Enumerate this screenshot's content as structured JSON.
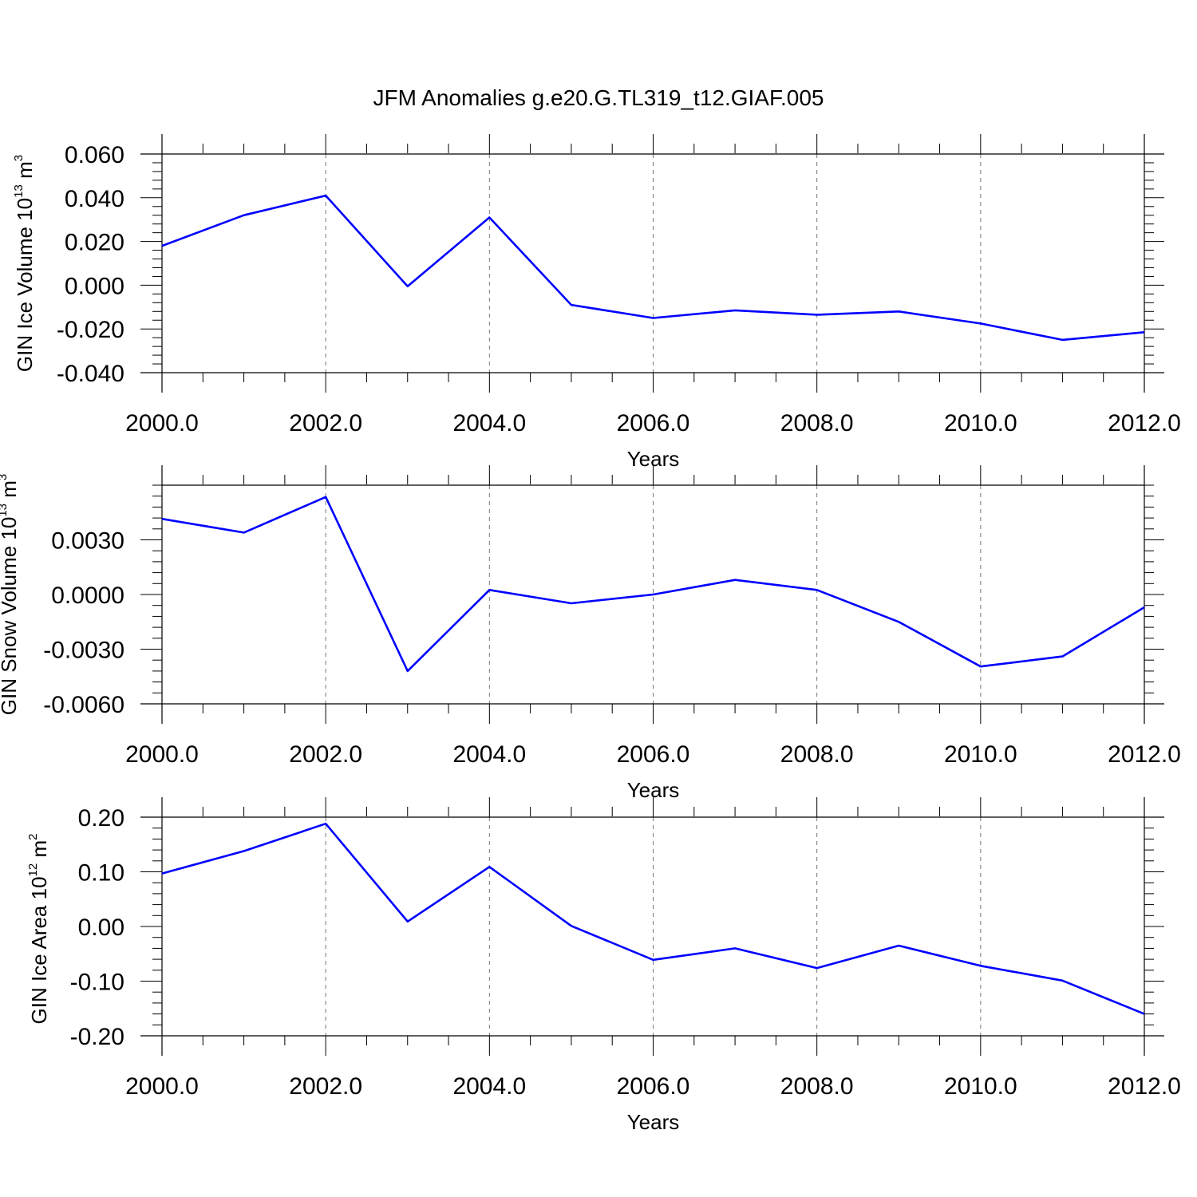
{
  "title": "JFM Anomalies g.e20.G.TL319_t12.GIAF.005",
  "colors": {
    "series": "#0000ff",
    "grid": "#777777",
    "axis": "#000000"
  },
  "chart_data": [
    {
      "type": "line",
      "xlabel": "Years",
      "ylabel": {
        "text": "GIN Ice Volume 10",
        "exp": "13",
        "unit_text": " m",
        "unit_exp": "3"
      },
      "xlim": [
        2000,
        2012
      ],
      "ylim": [
        -0.04,
        0.06
      ],
      "x_ticks": [
        2000,
        2002,
        2004,
        2006,
        2008,
        2010,
        2012
      ],
      "x_tick_labels": [
        "2000.0",
        "2002.0",
        "2004.0",
        "2006.0",
        "2008.0",
        "2010.0",
        "2012.0"
      ],
      "y_ticks": [
        -0.04,
        -0.02,
        0.0,
        0.02,
        0.04,
        0.06
      ],
      "y_tick_labels": [
        "-0.040",
        "-0.020",
        "0.000",
        "0.020",
        "0.040",
        "0.060"
      ],
      "grid": "vertical dashed",
      "series": [
        {
          "x": [
            2000,
            2001,
            2002,
            2003,
            2004,
            2005,
            2006,
            2007,
            2008,
            2009,
            2010,
            2011,
            2012
          ],
          "values": [
            0.018,
            0.032,
            0.041,
            -0.0005,
            0.031,
            -0.009,
            -0.015,
            -0.0115,
            -0.0135,
            -0.012,
            -0.0175,
            -0.025,
            -0.0215
          ]
        }
      ]
    },
    {
      "type": "line",
      "xlabel": "Years",
      "ylabel": {
        "text": "GIN Snow Volume 10",
        "exp": "13",
        "unit_text": " m",
        "unit_exp": "3"
      },
      "xlim": [
        2000,
        2012
      ],
      "ylim": [
        -0.006,
        0.006
      ],
      "x_ticks": [
        2000,
        2002,
        2004,
        2006,
        2008,
        2010,
        2012
      ],
      "x_tick_labels": [
        "2000.0",
        "2002.0",
        "2004.0",
        "2006.0",
        "2008.0",
        "2010.0",
        "2012.0"
      ],
      "y_ticks": [
        -0.006,
        -0.003,
        0.0,
        0.003
      ],
      "y_tick_labels": [
        "-0.0060",
        "-0.0030",
        "0.0000",
        "0.0030"
      ],
      "grid": "vertical dashed",
      "series": [
        {
          "x": [
            2000,
            2001,
            2002,
            2003,
            2004,
            2005,
            2006,
            2007,
            2008,
            2009,
            2010,
            2011,
            2012
          ],
          "values": [
            0.00415,
            0.0034,
            0.00535,
            -0.0042,
            0.00025,
            -0.00048,
            0.0,
            0.0008,
            0.00025,
            -0.0015,
            -0.00395,
            -0.0034,
            -0.0007
          ]
        }
      ]
    },
    {
      "type": "line",
      "xlabel": "Years",
      "ylabel": {
        "text": "GIN Ice Area 10",
        "exp": "12",
        "unit_text": " m",
        "unit_exp": "2"
      },
      "xlim": [
        2000,
        2012
      ],
      "ylim": [
        -0.2,
        0.2
      ],
      "x_ticks": [
        2000,
        2002,
        2004,
        2006,
        2008,
        2010,
        2012
      ],
      "x_tick_labels": [
        "2000.0",
        "2002.0",
        "2004.0",
        "2006.0",
        "2008.0",
        "2010.0",
        "2012.0"
      ],
      "y_ticks": [
        -0.2,
        -0.1,
        0.0,
        0.1,
        0.2
      ],
      "y_tick_labels": [
        "-0.20",
        "-0.10",
        "0.00",
        "0.10",
        "0.20"
      ],
      "grid": "vertical dashed",
      "series": [
        {
          "x": [
            2000,
            2001,
            2002,
            2003,
            2004,
            2005,
            2006,
            2007,
            2008,
            2009,
            2010,
            2011,
            2012
          ],
          "values": [
            0.097,
            0.138,
            0.188,
            0.009,
            0.109,
            0.001,
            -0.061,
            -0.04,
            -0.076,
            -0.035,
            -0.072,
            -0.099,
            -0.16
          ]
        }
      ]
    }
  ]
}
